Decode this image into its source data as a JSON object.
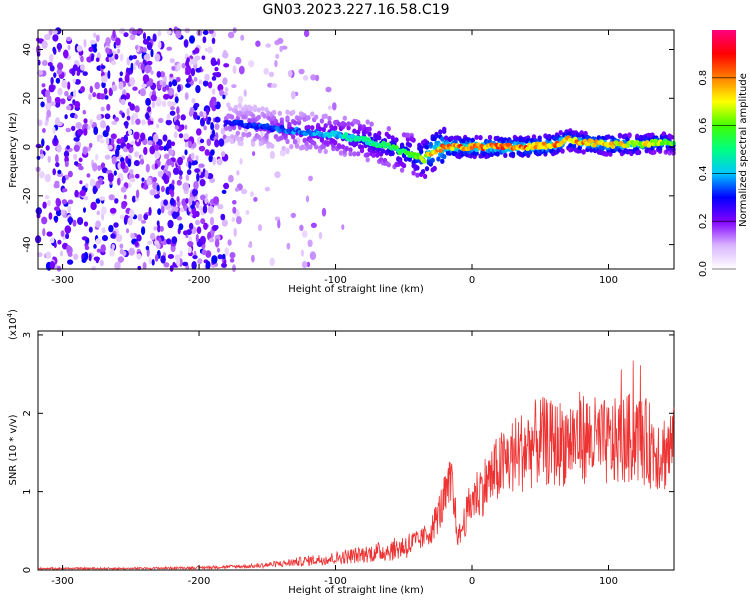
{
  "title": "GN03.2023.227.16.58.C19",
  "chart_data": [
    {
      "type": "heatmap",
      "xlabel": "Height of straight line (km)",
      "ylabel": "Frequency (Hz)",
      "xlim": [
        -318,
        148
      ],
      "ylim": [
        -50,
        48
      ],
      "xticks": [
        -300,
        -200,
        -100,
        0,
        100
      ],
      "yticks": [
        -40,
        -20,
        0,
        20,
        40
      ],
      "colorbar": {
        "label": "Normalized spectral amplitude",
        "range": [
          0,
          1
        ],
        "ticks": [
          "0.0",
          "0.2",
          "0.4",
          "0.6",
          "0.8"
        ],
        "colors": [
          "#ffffff",
          "#d9b3ff",
          "#8000ff",
          "#0000ff",
          "#00c8ff",
          "#00ff80",
          "#40ff00",
          "#ffff00",
          "#ff8000",
          "#ff0000",
          "#ff0080"
        ]
      },
      "ridge": {
        "name": "dominant frequency track",
        "x": [
          -180,
          -150,
          -120,
          -100,
          -80,
          -60,
          -45,
          -35,
          -30,
          -20,
          0,
          20,
          40,
          60,
          70,
          80,
          100,
          120,
          140,
          148
        ],
        "y": [
          10,
          8,
          6,
          5,
          3,
          0,
          -3,
          -5,
          -2,
          0,
          0,
          0,
          0,
          1,
          3,
          2,
          1,
          1,
          2,
          1
        ],
        "amplitude": [
          0.3,
          0.35,
          0.4,
          0.45,
          0.5,
          0.55,
          0.6,
          0.7,
          0.8,
          0.85,
          0.85,
          0.85,
          0.85,
          0.85,
          0.8,
          0.8,
          0.8,
          0.75,
          0.7,
          0.6
        ]
      },
      "noise_region": {
        "x_range": [
          -318,
          -180
        ],
        "y_range": [
          -50,
          48
        ],
        "amplitude": [
          0.05,
          0.3
        ]
      }
    },
    {
      "type": "line",
      "xlabel": "Height of straight line (km)",
      "ylabel": "SNR (10 * v/v)",
      "multiplier_label": "(x10",
      "multiplier_exp": "4",
      "multiplier_close": ")",
      "xlim": [
        -318,
        148
      ],
      "ylim": [
        0,
        3.05
      ],
      "xticks": [
        -300,
        -200,
        -100,
        0,
        100
      ],
      "yticks": [
        0,
        1,
        2,
        3
      ],
      "series": [
        {
          "color": "#ee3333",
          "x": [
            -318,
            -250,
            -200,
            -160,
            -140,
            -120,
            -100,
            -80,
            -60,
            -40,
            -30,
            -25,
            -20,
            -15,
            -10,
            0,
            10,
            20,
            30,
            40,
            50,
            60,
            70,
            80,
            90,
            100,
            110,
            120,
            130,
            140,
            148
          ],
          "y": [
            0.02,
            0.02,
            0.03,
            0.05,
            0.08,
            0.12,
            0.15,
            0.2,
            0.25,
            0.35,
            0.5,
            0.7,
            0.9,
            1.1,
            0.4,
            0.9,
            1.1,
            1.3,
            1.45,
            1.55,
            1.65,
            1.6,
            1.65,
            1.7,
            1.65,
            1.6,
            1.65,
            1.7,
            1.6,
            1.5,
            1.6
          ]
        }
      ]
    }
  ]
}
